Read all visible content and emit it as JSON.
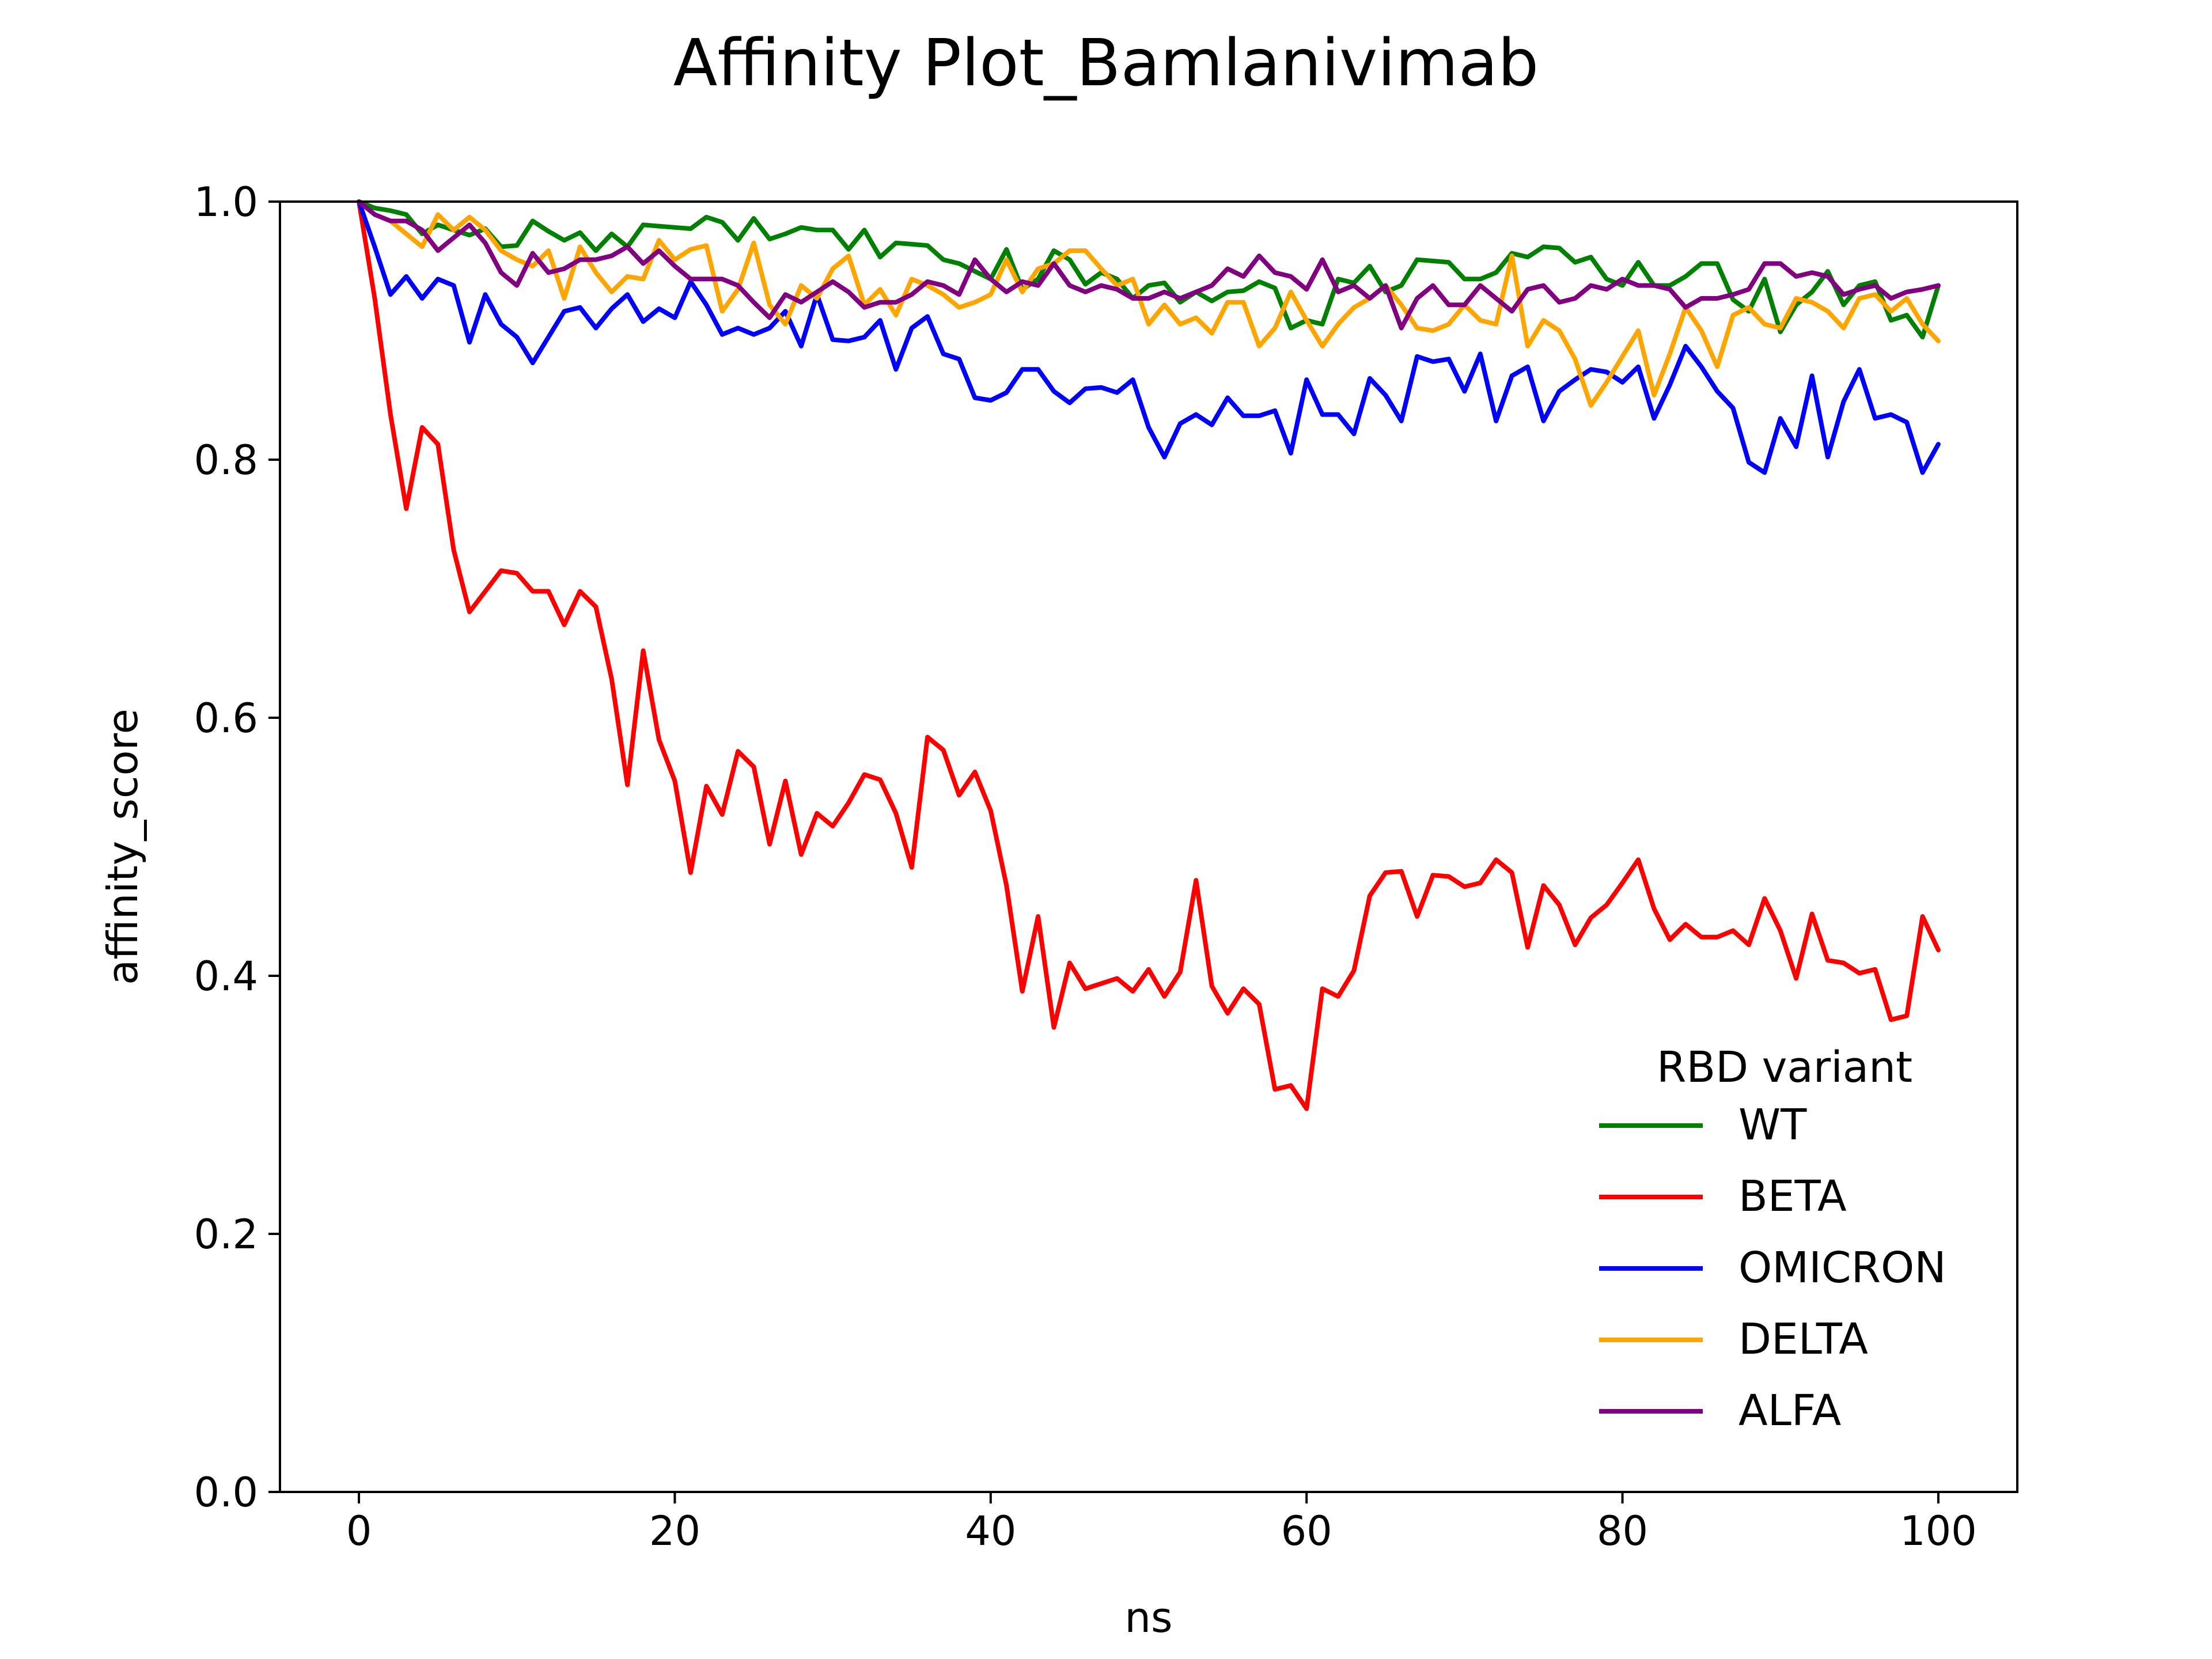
{
  "chart_data": {
    "type": "line",
    "title": "Affinity Plot_Bamlanivimab",
    "xlabel": "ns",
    "ylabel": "affinity_score",
    "xlim": [
      -5,
      105
    ],
    "ylim": [
      0.0,
      1.0
    ],
    "xticks": [
      "0",
      "20",
      "40",
      "60",
      "80",
      "100"
    ],
    "yticks": [
      "0.0",
      "0.2",
      "0.4",
      "0.6",
      "0.8",
      "1.0"
    ],
    "grid": false,
    "legend": {
      "title": "RBD variant",
      "placement": "lower-right"
    },
    "x": [
      0,
      1,
      2,
      3,
      4,
      5,
      6,
      7,
      8,
      9,
      10,
      11,
      12,
      13,
      14,
      15,
      16,
      17,
      18,
      19,
      20,
      21,
      22,
      23,
      24,
      25,
      26,
      27,
      28,
      29,
      30,
      31,
      32,
      33,
      34,
      35,
      36,
      37,
      38,
      39,
      40,
      41,
      42,
      43,
      44,
      45,
      46,
      47,
      48,
      49,
      50,
      51,
      52,
      53,
      54,
      55,
      56,
      57,
      58,
      59,
      60,
      61,
      62,
      63,
      64,
      65,
      66,
      67,
      68,
      69,
      70,
      71,
      72,
      73,
      74,
      75,
      76,
      77,
      78,
      79,
      80,
      81,
      82,
      83,
      84,
      85,
      86,
      87,
      88,
      89,
      90,
      91,
      92,
      93,
      94,
      95,
      96,
      97,
      98,
      99,
      100
    ],
    "series": [
      {
        "name": "WT",
        "color": "#008000",
        "values": [
          1.0,
          0.995,
          0.993,
          0.99,
          0.975,
          0.982,
          0.978,
          0.974,
          0.979,
          0.965,
          0.966,
          0.985,
          0.977,
          0.97,
          0.976,
          0.962,
          0.975,
          0.965,
          0.982,
          0.981,
          0.98,
          0.979,
          0.988,
          0.984,
          0.97,
          0.987,
          0.971,
          0.975,
          0.98,
          0.978,
          0.978,
          0.963,
          0.978,
          0.957,
          0.968,
          0.967,
          0.966,
          0.955,
          0.952,
          0.946,
          0.94,
          0.963,
          0.932,
          0.94,
          0.962,
          0.955,
          0.936,
          0.945,
          0.94,
          0.925,
          0.935,
          0.937,
          0.922,
          0.93,
          0.923,
          0.93,
          0.931,
          0.938,
          0.933,
          0.902,
          0.908,
          0.905,
          0.94,
          0.937,
          0.95,
          0.93,
          0.935,
          0.955,
          0.954,
          0.953,
          0.94,
          0.94,
          0.945,
          0.96,
          0.957,
          0.965,
          0.964,
          0.953,
          0.957,
          0.94,
          0.935,
          0.953,
          0.935,
          0.935,
          0.942,
          0.952,
          0.952,
          0.924,
          0.915,
          0.94,
          0.899,
          0.92,
          0.93,
          0.946,
          0.92,
          0.935,
          0.938,
          0.908,
          0.912,
          0.895,
          0.935
        ]
      },
      {
        "name": "BETA",
        "color": "#ff0000",
        "values": [
          1.0,
          0.925,
          0.835,
          0.762,
          0.825,
          0.812,
          0.73,
          0.682,
          0.698,
          0.714,
          0.712,
          0.698,
          0.698,
          0.672,
          0.698,
          0.686,
          0.63,
          0.548,
          0.652,
          0.583,
          0.551,
          0.48,
          0.547,
          0.525,
          0.574,
          0.562,
          0.502,
          0.551,
          0.494,
          0.526,
          0.516,
          0.534,
          0.556,
          0.552,
          0.526,
          0.484,
          0.585,
          0.575,
          0.54,
          0.558,
          0.528,
          0.47,
          0.388,
          0.446,
          0.36,
          0.41,
          0.39,
          0.394,
          0.398,
          0.388,
          0.405,
          0.384,
          0.403,
          0.474,
          0.392,
          0.371,
          0.39,
          0.378,
          0.312,
          0.315,
          0.297,
          0.39,
          0.384,
          0.404,
          0.462,
          0.48,
          0.481,
          0.446,
          0.478,
          0.477,
          0.469,
          0.472,
          0.49,
          0.48,
          0.422,
          0.47,
          0.455,
          0.424,
          0.445,
          0.455,
          0.472,
          0.49,
          0.452,
          0.428,
          0.44,
          0.43,
          0.43,
          0.435,
          0.424,
          0.46,
          0.435,
          0.398,
          0.448,
          0.412,
          0.41,
          0.402,
          0.405,
          0.366,
          0.369,
          0.446,
          0.42
        ]
      },
      {
        "name": "OMICRON",
        "color": "#0000ff",
        "values": [
          1.0,
          0.965,
          0.928,
          0.942,
          0.925,
          0.94,
          0.935,
          0.891,
          0.928,
          0.905,
          0.895,
          0.875,
          0.895,
          0.915,
          0.918,
          0.902,
          0.917,
          0.928,
          0.907,
          0.917,
          0.91,
          0.938,
          0.92,
          0.897,
          0.902,
          0.897,
          0.902,
          0.915,
          0.888,
          0.928,
          0.893,
          0.892,
          0.895,
          0.908,
          0.87,
          0.902,
          0.911,
          0.882,
          0.878,
          0.848,
          0.846,
          0.852,
          0.87,
          0.87,
          0.853,
          0.844,
          0.855,
          0.856,
          0.852,
          0.862,
          0.825,
          0.802,
          0.828,
          0.835,
          0.827,
          0.848,
          0.834,
          0.834,
          0.838,
          0.805,
          0.862,
          0.835,
          0.835,
          0.82,
          0.863,
          0.85,
          0.83,
          0.88,
          0.876,
          0.878,
          0.853,
          0.882,
          0.83,
          0.865,
          0.872,
          0.83,
          0.853,
          0.862,
          0.87,
          0.868,
          0.86,
          0.872,
          0.832,
          0.858,
          0.888,
          0.872,
          0.853,
          0.84,
          0.798,
          0.79,
          0.832,
          0.81,
          0.865,
          0.802,
          0.845,
          0.87,
          0.832,
          0.835,
          0.829,
          0.79,
          0.812
        ]
      },
      {
        "name": "DELTA",
        "color": "#ffa500",
        "values": [
          1.0,
          0.99,
          0.985,
          0.975,
          0.965,
          0.99,
          0.978,
          0.988,
          0.978,
          0.962,
          0.955,
          0.95,
          0.962,
          0.925,
          0.965,
          0.945,
          0.93,
          0.942,
          0.94,
          0.97,
          0.955,
          0.963,
          0.966,
          0.915,
          0.932,
          0.968,
          0.92,
          0.905,
          0.935,
          0.925,
          0.948,
          0.958,
          0.92,
          0.932,
          0.912,
          0.94,
          0.935,
          0.928,
          0.918,
          0.922,
          0.928,
          0.955,
          0.93,
          0.948,
          0.952,
          0.962,
          0.962,
          0.948,
          0.935,
          0.94,
          0.905,
          0.92,
          0.905,
          0.91,
          0.898,
          0.922,
          0.922,
          0.888,
          0.902,
          0.93,
          0.908,
          0.888,
          0.905,
          0.918,
          0.925,
          0.935,
          0.92,
          0.902,
          0.9,
          0.905,
          0.92,
          0.908,
          0.905,
          0.958,
          0.888,
          0.908,
          0.9,
          0.878,
          0.842,
          0.86,
          0.88,
          0.9,
          0.85,
          0.882,
          0.918,
          0.9,
          0.872,
          0.912,
          0.918,
          0.905,
          0.902,
          0.925,
          0.922,
          0.915,
          0.902,
          0.925,
          0.928,
          0.915,
          0.925,
          0.905,
          0.892
        ]
      },
      {
        "name": "ALFA",
        "color": "#800080",
        "values": [
          1.0,
          0.99,
          0.985,
          0.985,
          0.978,
          0.962,
          0.972,
          0.982,
          0.968,
          0.945,
          0.935,
          0.96,
          0.945,
          0.948,
          0.955,
          0.955,
          0.958,
          0.965,
          0.952,
          0.962,
          0.95,
          0.94,
          0.94,
          0.94,
          0.935,
          0.922,
          0.91,
          0.928,
          0.922,
          0.93,
          0.938,
          0.93,
          0.918,
          0.922,
          0.922,
          0.928,
          0.938,
          0.935,
          0.928,
          0.955,
          0.94,
          0.93,
          0.938,
          0.935,
          0.952,
          0.935,
          0.93,
          0.935,
          0.932,
          0.925,
          0.925,
          0.93,
          0.925,
          0.93,
          0.935,
          0.948,
          0.942,
          0.958,
          0.945,
          0.942,
          0.932,
          0.955,
          0.93,
          0.935,
          0.925,
          0.935,
          0.902,
          0.925,
          0.935,
          0.92,
          0.92,
          0.935,
          0.925,
          0.915,
          0.932,
          0.935,
          0.922,
          0.925,
          0.935,
          0.932,
          0.94,
          0.935,
          0.935,
          0.932,
          0.918,
          0.925,
          0.925,
          0.928,
          0.932,
          0.952,
          0.952,
          0.942,
          0.945,
          0.942,
          0.928,
          0.932,
          0.935,
          0.925,
          0.93,
          0.932,
          0.935
        ]
      }
    ]
  }
}
